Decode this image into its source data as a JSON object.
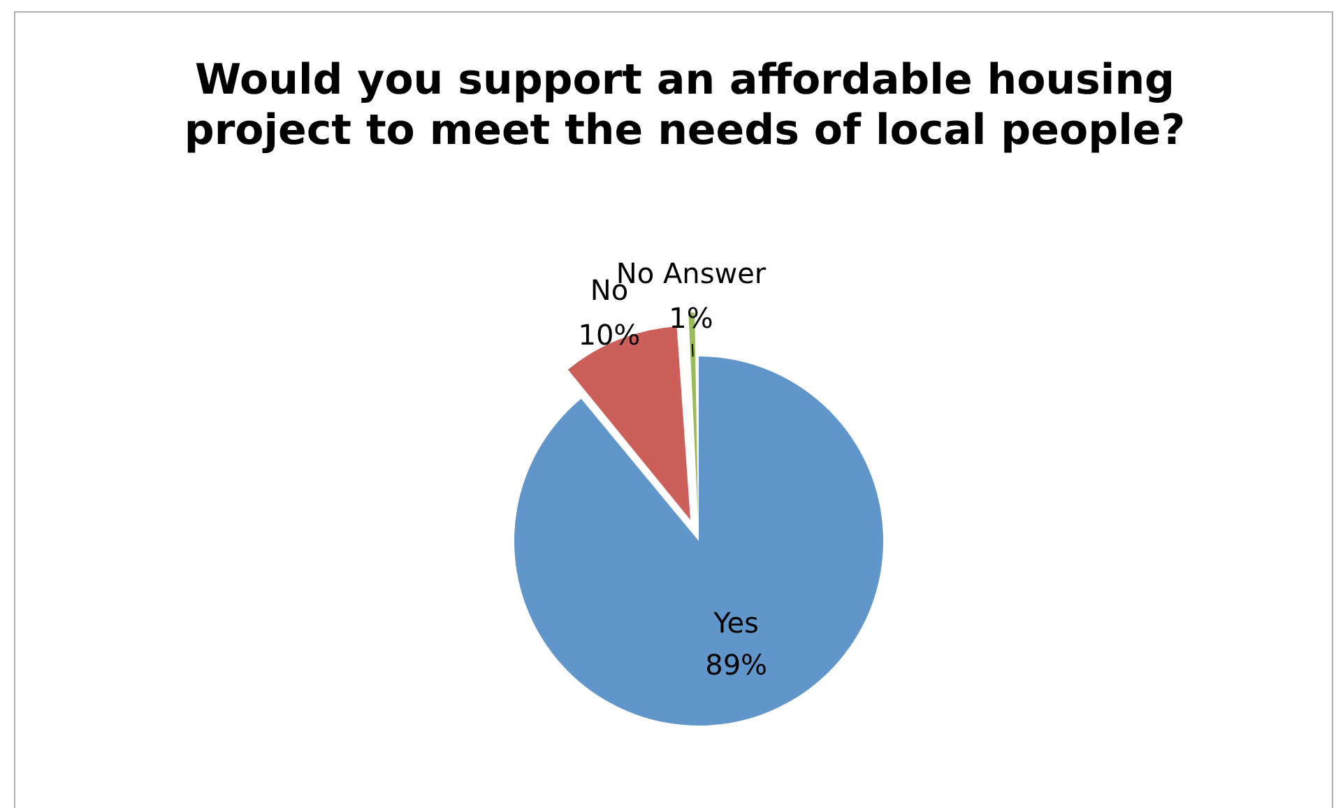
{
  "chart_data": {
    "type": "pie",
    "title": "Would you support an affordable housing project to meet the needs of local people?",
    "categories": [
      "Yes",
      "No",
      "No Answer"
    ],
    "values": [
      89,
      10,
      1
    ],
    "colors": [
      "#6096c9",
      "#cd5f5a",
      "#9bbb59"
    ],
    "value_labels": [
      "89%",
      "10%",
      "1%"
    ],
    "legend": false
  }
}
